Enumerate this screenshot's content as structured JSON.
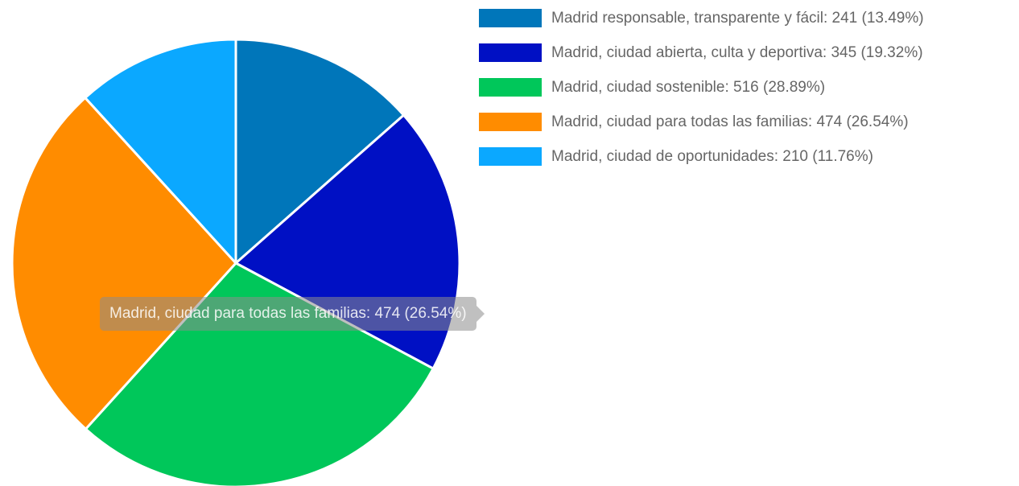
{
  "chart_data": {
    "type": "pie",
    "categories": [
      "Madrid responsable, transparente y fácil",
      "Madrid, ciudad abierta, culta y deportiva",
      "Madrid, ciudad sostenible",
      "Madrid, ciudad para todas las familias",
      "Madrid, ciudad de oportunidades"
    ],
    "values": [
      241,
      345,
      516,
      474,
      210
    ],
    "percentages": [
      "13.49%",
      "19.32%",
      "28.89%",
      "26.54%",
      "11.76%"
    ],
    "colors": [
      "#0076BA",
      "#0010C4",
      "#00C75A",
      "#FF8C00",
      "#0BA8FF"
    ],
    "legend_position": "right",
    "legend_labels": [
      "Madrid responsable, transparente y fácil: 241 (13.49%)",
      "Madrid, ciudad abierta, culta y deportiva: 345 (19.32%)",
      "Madrid, ciudad sostenible: 516 (28.89%)",
      "Madrid, ciudad para todas las familias: 474 (26.54%)",
      "Madrid, ciudad de oportunidades: 210 (11.76%)"
    ],
    "start_angle_deg": 0,
    "slice_border_color": "#ffffff"
  },
  "tooltip": {
    "text": "Madrid, ciudad para todas las familias: 474 (26.54%)",
    "visible_for_index": 3
  }
}
